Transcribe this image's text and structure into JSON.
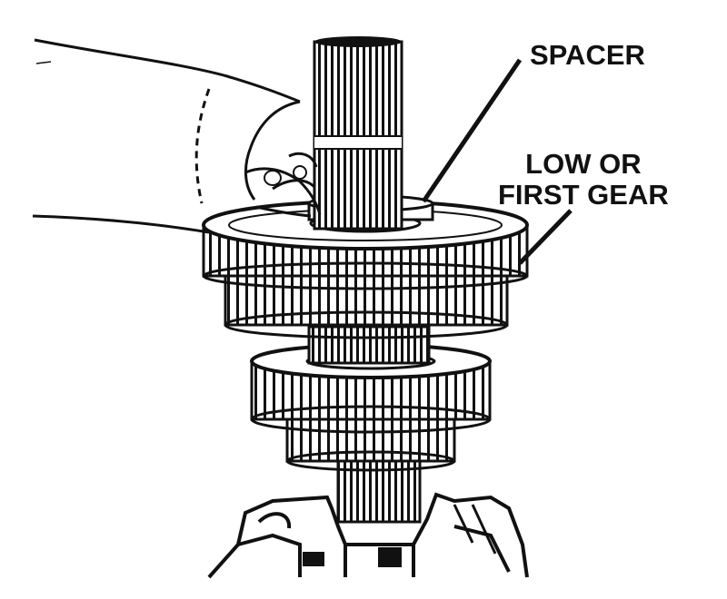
{
  "labels": {
    "spacer": "SPACER",
    "gear_line1": "LOW OR",
    "gear_line2": "FIRST GEAR"
  },
  "colors": {
    "ink": "#111111",
    "paper": "#ffffff"
  }
}
